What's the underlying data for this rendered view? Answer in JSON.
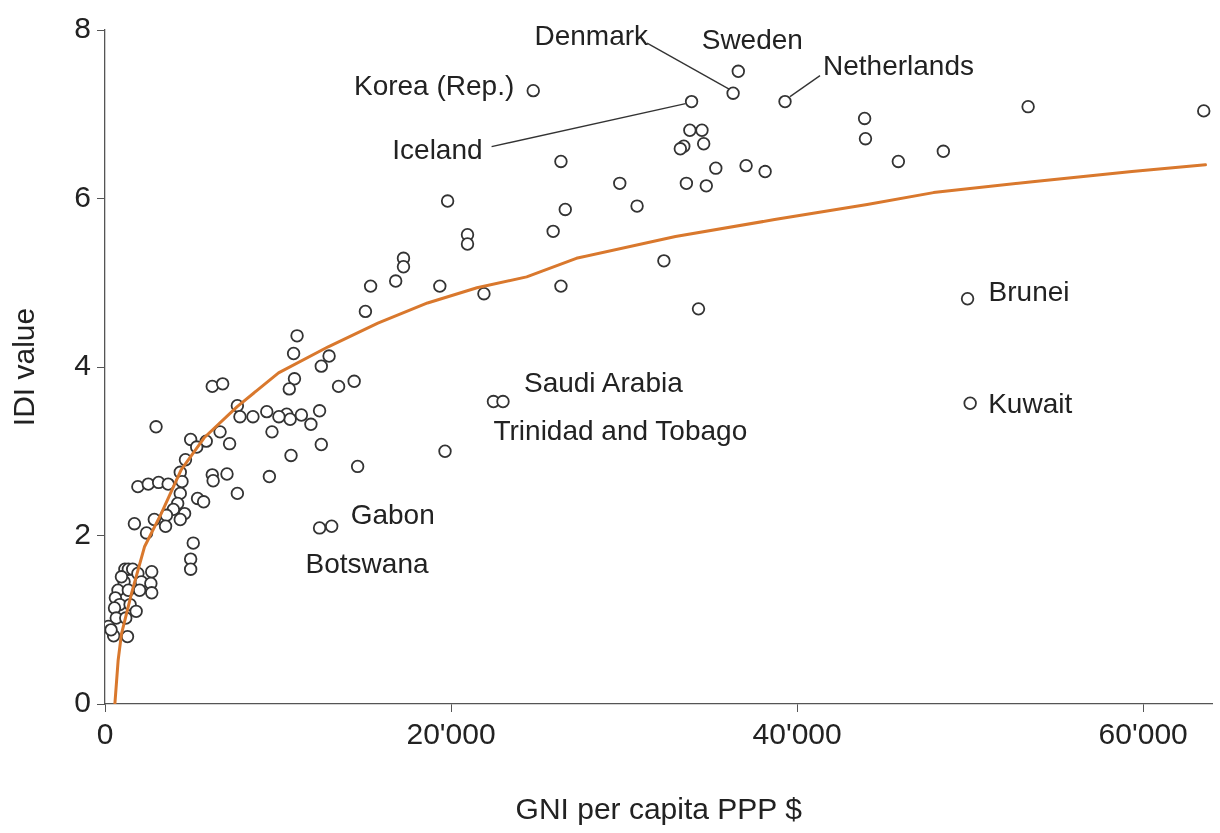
{
  "chart_data": {
    "type": "scatter",
    "xlabel": "GNI per capita PPP $",
    "ylabel": "IDI value",
    "xlim": [
      0,
      64000
    ],
    "ylim": [
      0,
      8
    ],
    "xticks": [
      0,
      {
        "value": 20000,
        "label": "20'000"
      },
      {
        "value": 40000,
        "label": "40'000"
      },
      {
        "value": 60000,
        "label": "60'000"
      }
    ],
    "yticks": [
      0,
      2,
      4,
      6,
      8
    ],
    "grid": false,
    "legend": false,
    "series": [
      {
        "type": "scatter",
        "marker": "circle",
        "color": "#333333",
        "x": [
          24750,
          36600,
          36300,
          33900,
          39300,
          33800,
          34500,
          34600,
          33450,
          33250,
          26350,
          35300,
          37050,
          38150,
          33600,
          34750,
          29750,
          30750,
          26600,
          25900,
          32300,
          26350,
          21900,
          34300,
          43900,
          43950,
          45850,
          48450,
          53350,
          63500,
          49850,
          50000,
          22450,
          23000,
          19800,
          20950,
          20950,
          19350,
          17250,
          17250,
          16800,
          15350,
          15050,
          11100,
          10900,
          12950,
          12500,
          10950,
          10650,
          14400,
          13500,
          10500,
          10700,
          11350,
          12400,
          11900,
          12500,
          10750,
          14600,
          19650,
          6200,
          6800,
          7650,
          7800,
          8550,
          9350,
          10050,
          9650,
          9500,
          2950,
          4950,
          5850,
          6650,
          7200,
          4650,
          4350,
          6200,
          6250,
          7050,
          4450,
          7650,
          5350,
          5700,
          1900,
          2500,
          3100,
          3650,
          4350,
          4200,
          4600,
          4350,
          3950,
          3550,
          3500,
          2850,
          1700,
          2400,
          12400,
          13100,
          5100,
          4950,
          4950,
          5300,
          1150,
          1350,
          1600,
          1900,
          2700,
          1100,
          2100,
          2650,
          750,
          1350,
          2000,
          2700,
          600,
          850,
          550,
          1450,
          1800,
          650,
          1200,
          200,
          500,
          1300,
          950,
          350
        ],
        "values": [
          7.28,
          7.51,
          7.25,
          7.15,
          7.15,
          6.81,
          6.81,
          6.65,
          6.62,
          6.59,
          6.44,
          6.36,
          6.39,
          6.32,
          6.18,
          6.15,
          6.18,
          5.91,
          5.87,
          5.61,
          5.26,
          4.96,
          4.87,
          4.69,
          6.95,
          6.71,
          6.44,
          6.56,
          7.09,
          7.04,
          4.81,
          3.57,
          3.59,
          3.59,
          5.97,
          5.57,
          5.46,
          4.96,
          5.29,
          5.19,
          5.02,
          4.96,
          4.66,
          4.37,
          4.16,
          4.13,
          4.01,
          3.86,
          3.74,
          3.83,
          3.77,
          3.44,
          3.38,
          3.43,
          3.48,
          3.32,
          3.08,
          2.95,
          2.82,
          3.0,
          3.77,
          3.8,
          3.54,
          3.41,
          3.41,
          3.47,
          3.41,
          3.23,
          2.7,
          3.29,
          3.14,
          3.12,
          3.23,
          3.09,
          2.9,
          2.75,
          2.72,
          2.65,
          2.73,
          2.64,
          2.5,
          2.44,
          2.4,
          2.58,
          2.61,
          2.63,
          2.61,
          2.5,
          2.38,
          2.26,
          2.19,
          2.31,
          2.24,
          2.11,
          2.19,
          2.14,
          2.03,
          2.09,
          2.11,
          1.91,
          1.72,
          1.6,
          3.05,
          1.6,
          1.6,
          1.6,
          1.55,
          1.57,
          1.45,
          1.45,
          1.43,
          1.35,
          1.35,
          1.35,
          1.32,
          1.26,
          1.18,
          1.14,
          1.18,
          1.1,
          1.02,
          1.02,
          0.92,
          0.81,
          0.8,
          1.51,
          0.88
        ]
      },
      {
        "type": "line",
        "marker": "none",
        "color": "#d9782d",
        "x": [
          570,
          760,
          950,
          1530,
          2290,
          3250,
          4400,
          5730,
          7640,
          10030,
          12900,
          15770,
          18640,
          21500,
          24370,
          27240,
          32970,
          38700,
          44050,
          47880,
          53600,
          59350,
          63600
        ],
        "values": [
          0,
          0.52,
          0.83,
          1.31,
          1.87,
          2.26,
          2.78,
          3.16,
          3.53,
          3.93,
          4.24,
          4.52,
          4.76,
          4.94,
          5.07,
          5.29,
          5.55,
          5.75,
          5.93,
          6.07,
          6.2,
          6.32,
          6.4
        ]
      }
    ],
    "annotations": [
      {
        "text": "Denmark",
        "x": 36300,
        "y": 7.25
      },
      {
        "text": "Sweden",
        "x": 36600,
        "y": 7.51
      },
      {
        "text": "Netherlands",
        "x": 39300,
        "y": 7.15
      },
      {
        "text": "Korea (Rep.)",
        "x": 24750,
        "y": 7.28
      },
      {
        "text": "Iceland",
        "x": 33900,
        "y": 7.15
      },
      {
        "text": "Saudi Arabia",
        "x": 23000,
        "y": 3.59
      },
      {
        "text": "Trinidad and Tobago",
        "x": 22450,
        "y": 3.59
      },
      {
        "text": "Gabon",
        "x": 13100,
        "y": 2.11
      },
      {
        "text": "Botswana",
        "x": 12400,
        "y": 2.09
      },
      {
        "text": "Brunei",
        "x": 49850,
        "y": 4.81
      },
      {
        "text": "Kuwait",
        "x": 50000,
        "y": 3.57
      }
    ]
  }
}
